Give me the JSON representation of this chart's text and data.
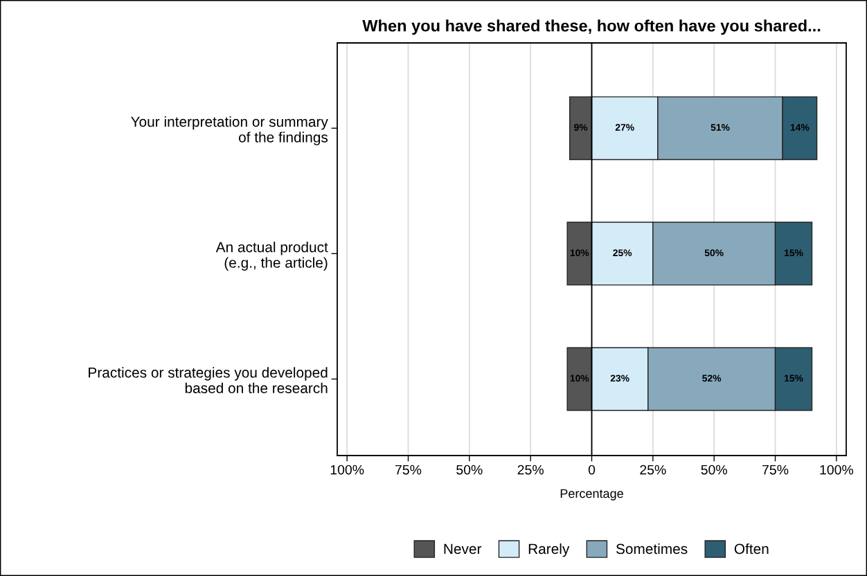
{
  "chart_data": {
    "type": "bar",
    "orientation": "horizontal",
    "stacked": true,
    "title": "When you have shared these, how often have you shared...",
    "xlabel": "Percentage",
    "categories": [
      "Your interpretation or summary\nof the findings",
      "An actual product\n(e.g., the article)",
      "Practices or strategies you developed\nbased on the research"
    ],
    "series": [
      {
        "name": "Never",
        "color": "#555555",
        "values": [
          9,
          10,
          10
        ],
        "base": [
          -9,
          -10,
          -10
        ],
        "value_labels": [
          "9%",
          "10%",
          "10%"
        ]
      },
      {
        "name": "Rarely",
        "color": "#d4ebf8",
        "values": [
          27,
          25,
          23
        ],
        "value_labels": [
          "27%",
          "25%",
          "23%"
        ]
      },
      {
        "name": "Sometimes",
        "color": "#88a9bb",
        "values": [
          51,
          50,
          52
        ],
        "value_labels": [
          "51%",
          "50%",
          "52%"
        ]
      },
      {
        "name": "Often",
        "color": "#2e5e72",
        "values": [
          14,
          15,
          15
        ],
        "value_labels": [
          "14%",
          "15%",
          "15%"
        ]
      }
    ],
    "xlim": [
      -104,
      104
    ],
    "xticks": [
      {
        "value": -100,
        "label": "100%"
      },
      {
        "value": -75,
        "label": "75%"
      },
      {
        "value": -50,
        "label": "50%"
      },
      {
        "value": -25,
        "label": "25%"
      },
      0,
      {
        "value": 25,
        "label": "25%"
      },
      {
        "value": 50,
        "label": "50%"
      },
      {
        "value": 75,
        "label": "75%"
      },
      {
        "value": 100,
        "label": "100%"
      }
    ],
    "ref_lines": [
      {
        "axis": "x",
        "value": 0,
        "color": "#000000"
      }
    ],
    "grid": "x",
    "legend": "bottom"
  }
}
